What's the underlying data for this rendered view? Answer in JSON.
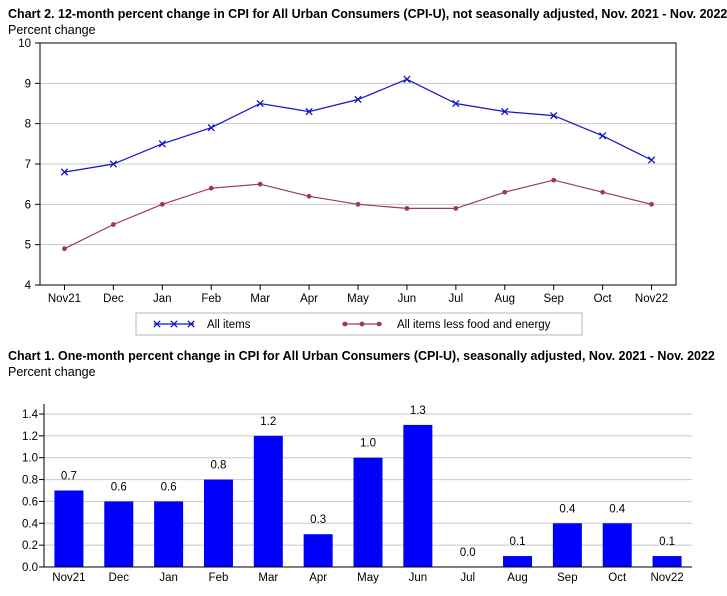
{
  "chart_data": [
    {
      "type": "line",
      "title": "Chart 2. 12-month percent change in CPI for All Urban Consumers (CPI-U), not seasonally adjusted, Nov. 2021 - Nov. 2022",
      "ylabel": "Percent change",
      "xlabel": "",
      "ylim": [
        4,
        10
      ],
      "yticks": [
        4,
        5,
        6,
        7,
        8,
        9,
        10
      ],
      "grid": true,
      "legend_position": "bottom",
      "categories": [
        "Nov21",
        "Dec",
        "Jan",
        "Feb",
        "Mar",
        "Apr",
        "May",
        "Jun",
        "Jul",
        "Aug",
        "Sep",
        "Oct",
        "Nov22"
      ],
      "series": [
        {
          "name": "All items",
          "color": "#1414c8",
          "marker": "x",
          "values": [
            6.8,
            7.0,
            7.5,
            7.9,
            8.5,
            8.3,
            8.6,
            9.1,
            8.5,
            8.3,
            8.2,
            7.7,
            7.1
          ]
        },
        {
          "name": "All items less food and energy",
          "color": "#9c3a5c",
          "marker": "dot",
          "values": [
            4.9,
            5.5,
            6.0,
            6.4,
            6.5,
            6.2,
            6.0,
            5.9,
            5.9,
            6.3,
            6.6,
            6.3,
            6.0
          ]
        }
      ]
    },
    {
      "type": "bar",
      "title": "Chart 1. One-month percent change in CPI for All Urban Consumers (CPI-U), seasonally adjusted, Nov. 2021 - Nov. 2022",
      "ylabel": "Percent change",
      "xlabel": "",
      "ylim": [
        0,
        1.4
      ],
      "yticks": [
        "0.0",
        "0.2",
        "0.4",
        "0.6",
        "0.8",
        "1.0",
        "1.2",
        "1.4"
      ],
      "grid": true,
      "bar_color": "#0000ff",
      "categories": [
        "Nov21",
        "Dec",
        "Jan",
        "Feb",
        "Mar",
        "Apr",
        "May",
        "Jun",
        "Jul",
        "Aug",
        "Sep",
        "Oct",
        "Nov22"
      ],
      "values": [
        0.7,
        0.6,
        0.6,
        0.8,
        1.2,
        0.3,
        1.0,
        1.3,
        0.0,
        0.1,
        0.4,
        0.4,
        0.1
      ],
      "data_labels": [
        "0.7",
        "0.6",
        "0.6",
        "0.8",
        "1.2",
        "0.3",
        "1.0",
        "1.3",
        "0.0",
        "0.1",
        "0.4",
        "0.4",
        "0.1"
      ]
    }
  ]
}
